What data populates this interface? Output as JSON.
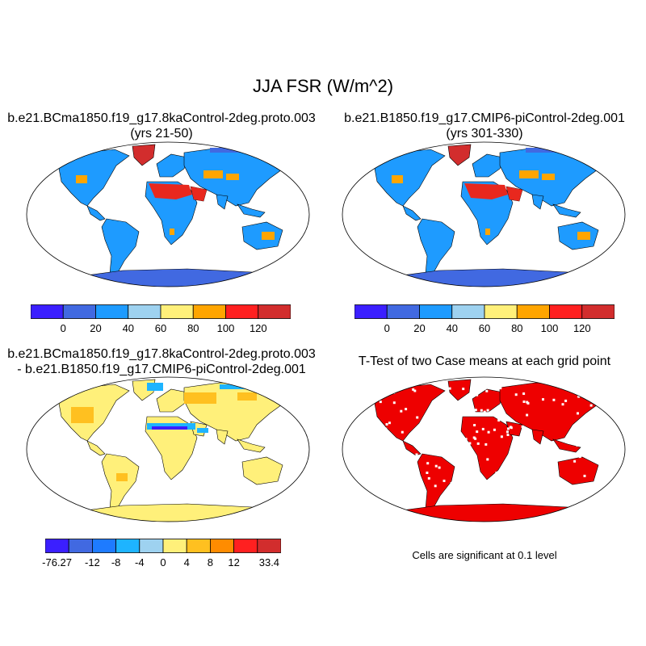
{
  "figure": {
    "title": "JJA FSR (W/m^2)"
  },
  "panels": [
    {
      "id": "case1",
      "title_line1": "b.e21.BCma1850.f19_g17.8kaControl-2deg.proto.003",
      "title_line2": "(yrs 21-50)"
    },
    {
      "id": "case2",
      "title_line1": "b.e21.B1850.f19_g17.CMIP6-piControl-2deg.001",
      "title_line2": "(yrs 301-330)"
    },
    {
      "id": "diff",
      "title_line1": "b.e21.BCma1850.f19_g17.8kaControl-2deg.proto.003",
      "title_line2": "- b.e21.B1850.f19_g17.CMIP6-piControl-2deg.001"
    },
    {
      "id": "ttest",
      "title_line1": "T-Test of two Case means at each grid point",
      "note": "Cells are significant at 0.1 level"
    }
  ],
  "colorbars": {
    "absolute": {
      "colors": [
        "#3b1fff",
        "#4169e1",
        "#1e9bff",
        "#9ed2f0",
        "#fff07a",
        "#ffa500",
        "#ff2020",
        "#d22d2d"
      ],
      "labels": [
        "0",
        "20",
        "40",
        "60",
        "80",
        "100",
        "120"
      ]
    },
    "difference": {
      "colors": [
        "#3b1fff",
        "#4169e1",
        "#1e7bff",
        "#1eb4ff",
        "#9ed2f0",
        "#fff07a",
        "#ffc020",
        "#ff8c00",
        "#ff2020",
        "#d22d2d"
      ],
      "labels": [
        "-76.27",
        "-12",
        "-8",
        "-4",
        "0",
        "4",
        "8",
        "12",
        "33.4"
      ]
    }
  },
  "colors": {
    "ocean": "#ffffff",
    "land_default": "#1e9bff",
    "antarctica_abs": "#4169e1",
    "greenland": "#d22d2d",
    "sahara": "#e8281e",
    "arid": "#ffa500",
    "diff_land": "#fff07a",
    "diff_warm": "#ffc020",
    "diff_cool": "#1eb4ff",
    "ttest_sig": "#ee0000"
  }
}
